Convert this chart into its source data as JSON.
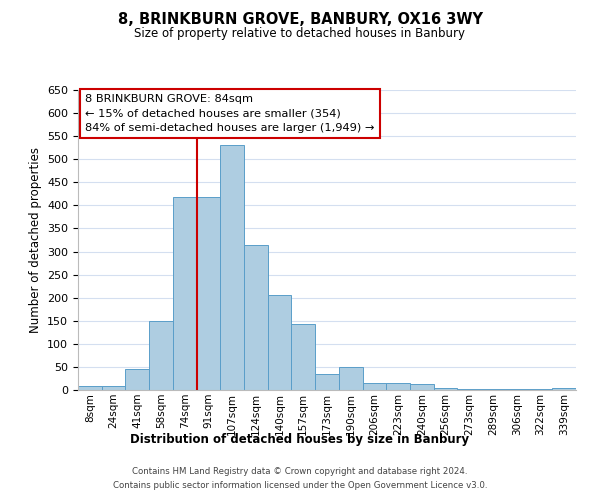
{
  "title": "8, BRINKBURN GROVE, BANBURY, OX16 3WY",
  "subtitle": "Size of property relative to detached houses in Banbury",
  "xlabel": "Distribution of detached houses by size in Banbury",
  "ylabel": "Number of detached properties",
  "bar_labels": [
    "8sqm",
    "24sqm",
    "41sqm",
    "58sqm",
    "74sqm",
    "91sqm",
    "107sqm",
    "124sqm",
    "140sqm",
    "157sqm",
    "173sqm",
    "190sqm",
    "206sqm",
    "223sqm",
    "240sqm",
    "256sqm",
    "273sqm",
    "289sqm",
    "306sqm",
    "322sqm",
    "339sqm"
  ],
  "bar_values": [
    8,
    8,
    45,
    150,
    418,
    418,
    530,
    315,
    205,
    143,
    35,
    50,
    15,
    15,
    12,
    5,
    3,
    2,
    2,
    2,
    5
  ],
  "bar_color": "#aecde1",
  "bar_edge_color": "#5a9ec9",
  "vline_index": 5,
  "vline_color": "#cc0000",
  "ylim": [
    0,
    650
  ],
  "yticks": [
    0,
    50,
    100,
    150,
    200,
    250,
    300,
    350,
    400,
    450,
    500,
    550,
    600,
    650
  ],
  "annotation_title": "8 BRINKBURN GROVE: 84sqm",
  "annotation_line1": "← 15% of detached houses are smaller (354)",
  "annotation_line2": "84% of semi-detached houses are larger (1,949) →",
  "annotation_box_color": "#ffffff",
  "annotation_box_edge": "#cc0000",
  "footer_line1": "Contains HM Land Registry data © Crown copyright and database right 2024.",
  "footer_line2": "Contains public sector information licensed under the Open Government Licence v3.0.",
  "background_color": "#ffffff",
  "grid_color": "#d4dff0"
}
